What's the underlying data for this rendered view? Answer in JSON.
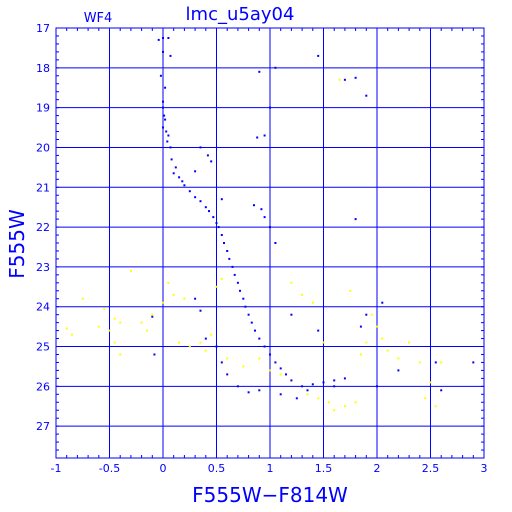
{
  "chart_data": {
    "type": "scatter",
    "title": "lmc_u5ay04",
    "subtitle": "WF4",
    "xlabel": "F555W−F814W",
    "ylabel": "F555W",
    "xlim": [
      -1,
      3
    ],
    "ylim": [
      27.8,
      17
    ],
    "y_inverted": true,
    "grid": true,
    "x_ticks": [
      "-1",
      "-0.5",
      "0",
      "0.5",
      "1",
      "1.5",
      "2",
      "2.5",
      "3"
    ],
    "y_ticks": [
      "17",
      "18",
      "19",
      "20",
      "21",
      "22",
      "23",
      "24",
      "25",
      "26",
      "27"
    ],
    "colors": {
      "axes": "#0000ff",
      "grid": "#0000ff",
      "main": "#0000ff",
      "faint": "#ffff00",
      "background": "#ffffff"
    },
    "series": [
      {
        "color": "#0000ff",
        "points": [
          [
            -0.04,
            17.3
          ],
          [
            0.0,
            17.25
          ],
          [
            0.05,
            17.25
          ],
          [
            0.0,
            17.6
          ],
          [
            0.07,
            17.7
          ],
          [
            -0.02,
            18.2
          ],
          [
            0.02,
            18.5
          ],
          [
            0.0,
            18.85
          ],
          [
            0.0,
            19.0
          ],
          [
            0.01,
            19.2
          ],
          [
            0.02,
            19.3
          ],
          [
            0.0,
            19.5
          ],
          [
            0.03,
            19.6
          ],
          [
            0.05,
            19.7
          ],
          [
            0.04,
            19.85
          ],
          [
            0.07,
            20.0
          ],
          [
            0.08,
            20.3
          ],
          [
            0.12,
            20.5
          ],
          [
            0.1,
            20.65
          ],
          [
            0.15,
            20.75
          ],
          [
            0.18,
            20.85
          ],
          [
            0.2,
            20.95
          ],
          [
            0.25,
            21.1
          ],
          [
            0.3,
            21.25
          ],
          [
            0.35,
            21.35
          ],
          [
            0.4,
            21.5
          ],
          [
            0.43,
            21.6
          ],
          [
            0.47,
            21.75
          ],
          [
            0.5,
            21.9
          ],
          [
            0.52,
            22.0
          ],
          [
            0.55,
            22.2
          ],
          [
            0.57,
            22.4
          ],
          [
            0.6,
            22.6
          ],
          [
            0.62,
            22.8
          ],
          [
            0.65,
            23.0
          ],
          [
            0.67,
            23.2
          ],
          [
            0.7,
            23.4
          ],
          [
            0.72,
            23.6
          ],
          [
            0.75,
            23.8
          ],
          [
            0.77,
            24.0
          ],
          [
            0.8,
            24.2
          ],
          [
            0.83,
            24.4
          ],
          [
            0.86,
            24.6
          ],
          [
            0.9,
            24.8
          ],
          [
            0.95,
            25.0
          ],
          [
            1.0,
            25.2
          ],
          [
            1.05,
            25.4
          ],
          [
            1.1,
            25.55
          ],
          [
            1.15,
            25.7
          ],
          [
            1.2,
            25.85
          ],
          [
            1.3,
            26.0
          ],
          [
            1.4,
            25.95
          ],
          [
            1.5,
            25.9
          ],
          [
            1.6,
            25.85
          ],
          [
            1.7,
            25.8
          ],
          [
            0.35,
            20.0
          ],
          [
            0.42,
            20.2
          ],
          [
            0.45,
            20.35
          ],
          [
            0.3,
            20.6
          ],
          [
            0.55,
            21.3
          ],
          [
            0.85,
            21.45
          ],
          [
            0.92,
            21.55
          ],
          [
            0.95,
            21.75
          ],
          [
            1.0,
            22.0
          ],
          [
            1.05,
            22.4
          ],
          [
            0.88,
            19.75
          ],
          [
            0.95,
            19.7
          ],
          [
            0.9,
            18.1
          ],
          [
            1.05,
            18.0
          ],
          [
            1.0,
            19.0
          ],
          [
            1.7,
            18.3
          ],
          [
            1.45,
            17.7
          ],
          [
            1.8,
            18.25
          ],
          [
            1.9,
            18.7
          ],
          [
            1.8,
            21.8
          ],
          [
            -0.1,
            24.25
          ],
          [
            -0.08,
            25.2
          ],
          [
            0.3,
            23.8
          ],
          [
            0.35,
            24.1
          ],
          [
            0.4,
            24.8
          ],
          [
            0.5,
            25.0
          ],
          [
            0.55,
            25.4
          ],
          [
            0.6,
            25.7
          ],
          [
            0.7,
            26.0
          ],
          [
            0.8,
            26.15
          ],
          [
            0.9,
            26.1
          ],
          [
            1.1,
            26.2
          ],
          [
            1.25,
            26.3
          ],
          [
            1.35,
            26.1
          ],
          [
            1.6,
            26.0
          ],
          [
            1.9,
            24.2
          ],
          [
            2.05,
            23.9
          ],
          [
            1.85,
            24.5
          ],
          [
            2.2,
            25.6
          ],
          [
            2.55,
            25.4
          ],
          [
            2.6,
            26.1
          ],
          [
            2.9,
            25.4
          ],
          [
            2.0,
            26.0
          ],
          [
            1.45,
            24.6
          ],
          [
            1.2,
            24.2
          ]
        ]
      },
      {
        "color": "#ffff00",
        "points": [
          [
            -0.85,
            24.7
          ],
          [
            -0.9,
            24.55
          ],
          [
            -0.75,
            23.8
          ],
          [
            -0.55,
            24.05
          ],
          [
            -0.45,
            24.3
          ],
          [
            -0.4,
            24.4
          ],
          [
            -0.5,
            24.6
          ],
          [
            -0.45,
            24.9
          ],
          [
            -0.4,
            25.2
          ],
          [
            -0.6,
            24.5
          ],
          [
            -0.3,
            23.1
          ],
          [
            -0.15,
            24.6
          ],
          [
            -0.1,
            24.2
          ],
          [
            0.05,
            23.4
          ],
          [
            0.1,
            23.7
          ],
          [
            0.2,
            23.8
          ],
          [
            0.15,
            24.9
          ],
          [
            0.25,
            25.0
          ],
          [
            0.35,
            24.9
          ],
          [
            0.4,
            25.1
          ],
          [
            0.45,
            24.7
          ],
          [
            0.5,
            23.5
          ],
          [
            0.55,
            23.3
          ],
          [
            0.6,
            25.3
          ],
          [
            0.75,
            25.5
          ],
          [
            0.9,
            25.3
          ],
          [
            1.0,
            25.6
          ],
          [
            1.1,
            25.7
          ],
          [
            1.2,
            23.4
          ],
          [
            1.3,
            23.7
          ],
          [
            1.4,
            23.9
          ],
          [
            1.5,
            24.9
          ],
          [
            1.55,
            26.4
          ],
          [
            1.6,
            26.6
          ],
          [
            1.7,
            26.5
          ],
          [
            1.8,
            26.4
          ],
          [
            1.85,
            25.2
          ],
          [
            1.9,
            24.9
          ],
          [
            2.0,
            24.5
          ],
          [
            2.05,
            24.8
          ],
          [
            2.1,
            25.1
          ],
          [
            2.2,
            25.3
          ],
          [
            2.3,
            24.9
          ],
          [
            2.4,
            25.4
          ],
          [
            2.45,
            26.3
          ],
          [
            2.5,
            25.9
          ],
          [
            2.55,
            26.5
          ],
          [
            1.65,
            18.3
          ],
          [
            1.75,
            23.6
          ],
          [
            1.95,
            24.2
          ],
          [
            2.6,
            25.4
          ],
          [
            1.35,
            26.2
          ],
          [
            1.45,
            26.3
          ],
          [
            0.0,
            23.9
          ],
          [
            -0.2,
            24.4
          ]
        ]
      }
    ]
  }
}
